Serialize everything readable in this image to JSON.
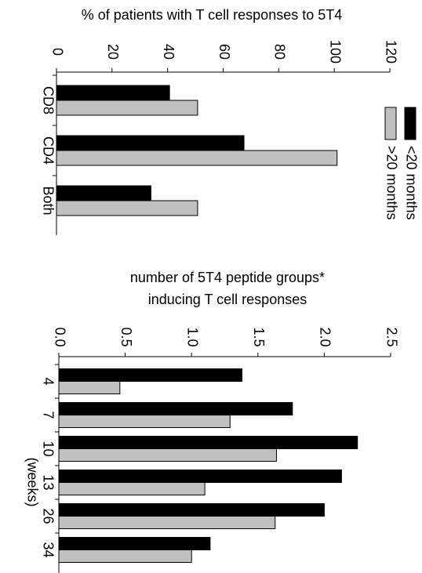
{
  "chart_data": [
    {
      "type": "bar",
      "title": "% of patients with T cell responses to 5T4",
      "categories": [
        "CD8",
        "CD4",
        "Both"
      ],
      "series": [
        {
          "name": "<20 months",
          "color": "#000000",
          "values": [
            40.7,
            67.5,
            34
          ]
        },
        {
          "name": ">20 months",
          "color": "#c0c0c0",
          "values": [
            50.8,
            101,
            50.8
          ]
        }
      ],
      "xlim": [
        0,
        120
      ],
      "xticks": [
        0,
        20,
        40,
        60,
        80,
        100,
        120
      ],
      "legend": "right"
    },
    {
      "type": "bar",
      "title_lines": [
        "number of 5T4 peptide groups*",
        "inducing T cell responses"
      ],
      "categories": [
        "4",
        "7",
        "10",
        "13",
        "26",
        "34"
      ],
      "category_axis_label": "(weeks)",
      "series": [
        {
          "color": "#000000",
          "values": [
            1.38,
            1.76,
            2.25,
            2.13,
            2.0,
            1.14
          ]
        },
        {
          "color": "#c0c0c0",
          "values": [
            0.46,
            1.29,
            1.64,
            1.1,
            1.63,
            1.0
          ]
        }
      ],
      "xlim": [
        0,
        2.5
      ],
      "xticks": [
        {
          "value": 0,
          "label": "0.0"
        },
        {
          "value": 0.5,
          "label": "0.5"
        },
        {
          "value": 1,
          "label": "1.0"
        },
        {
          "value": 1.5,
          "label": "1.5"
        },
        {
          "value": 2,
          "label": "2.0"
        },
        {
          "value": 2.5,
          "label": "2.5"
        }
      ]
    }
  ]
}
